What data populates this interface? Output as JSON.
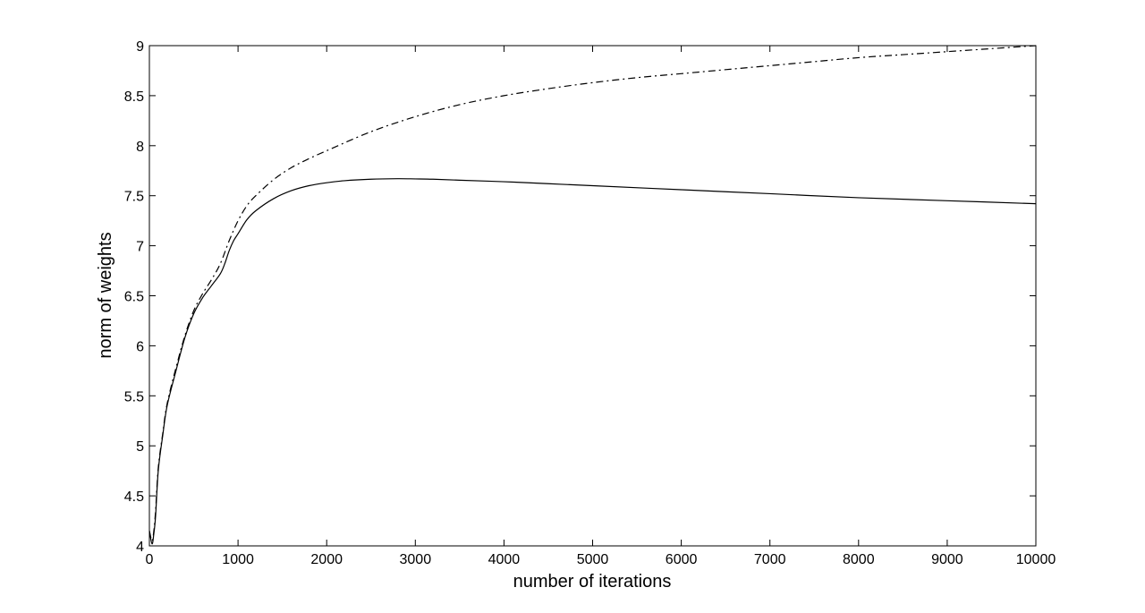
{
  "chart_data": {
    "type": "line",
    "title": "",
    "xlabel": "number of iterations",
    "ylabel": "norm of weights",
    "xlim": [
      0,
      10000
    ],
    "ylim": [
      4,
      9
    ],
    "x_ticks": [
      0,
      1000,
      2000,
      3000,
      4000,
      5000,
      6000,
      7000,
      8000,
      9000,
      10000
    ],
    "y_ticks": [
      4,
      4.5,
      5,
      5.5,
      6,
      6.5,
      7,
      7.5,
      8,
      8.5,
      9
    ],
    "grid": false,
    "legend": "none",
    "series": [
      {
        "style": "solid",
        "color": "#000000",
        "x": [
          0,
          30,
          50,
          70,
          100,
          150,
          200,
          300,
          400,
          500,
          600,
          700,
          800,
          850,
          900,
          950,
          1000,
          1100,
          1200,
          1400,
          1600,
          1800,
          2000,
          2200,
          2500,
          2800,
          3000,
          3200,
          3500,
          4000,
          4500,
          5000,
          6000,
          7000,
          8000,
          9000,
          10000
        ],
        "y": [
          4.15,
          4.02,
          4.12,
          4.3,
          4.75,
          5.1,
          5.4,
          5.75,
          6.08,
          6.32,
          6.48,
          6.6,
          6.72,
          6.82,
          6.95,
          7.05,
          7.12,
          7.26,
          7.35,
          7.47,
          7.55,
          7.6,
          7.63,
          7.65,
          7.665,
          7.67,
          7.668,
          7.665,
          7.655,
          7.64,
          7.62,
          7.6,
          7.56,
          7.52,
          7.48,
          7.45,
          7.42
        ]
      },
      {
        "style": "dash-dot",
        "color": "#000000",
        "x": [
          0,
          30,
          50,
          70,
          100,
          150,
          200,
          300,
          400,
          500,
          600,
          700,
          800,
          900,
          1000,
          1100,
          1200,
          1400,
          1600,
          1800,
          2000,
          2500,
          3000,
          3500,
          4000,
          4500,
          5000,
          5500,
          6000,
          6500,
          7000,
          7500,
          8000,
          8500,
          9000,
          9500,
          10000
        ],
        "y": [
          4.15,
          4.05,
          4.15,
          4.35,
          4.78,
          5.12,
          5.42,
          5.78,
          6.1,
          6.35,
          6.52,
          6.66,
          6.82,
          7.05,
          7.25,
          7.4,
          7.5,
          7.66,
          7.78,
          7.87,
          7.95,
          8.14,
          8.29,
          8.41,
          8.5,
          8.57,
          8.63,
          8.68,
          8.72,
          8.76,
          8.8,
          8.84,
          8.88,
          8.91,
          8.94,
          8.97,
          9.0
        ]
      }
    ]
  }
}
